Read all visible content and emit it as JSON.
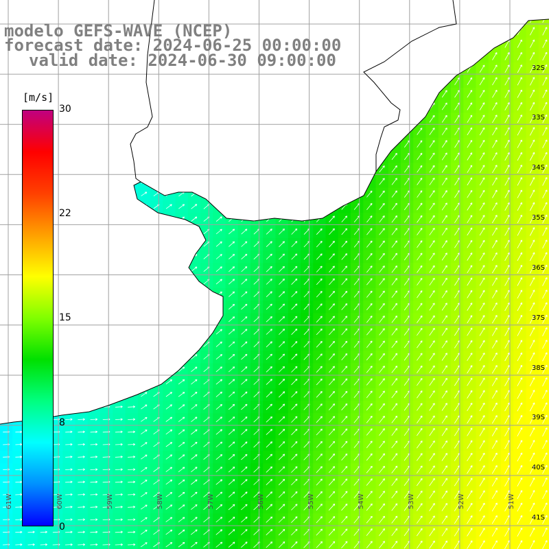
{
  "title": {
    "model": "modelo GEFS-WAVE (NCEP)",
    "forecast": "forecast date: 2024-06-25 00:00:00",
    "valid": "valid date: 2024-06-30 09:00:00"
  },
  "colorbar": {
    "unit": "[m/s]",
    "ticks": [
      "30",
      "22",
      "15",
      "8",
      "0"
    ],
    "tick_values": [
      30,
      22,
      15,
      8,
      0
    ],
    "colors": [
      "#0000ff",
      "#0090ff",
      "#00ffff",
      "#00ff80",
      "#00e000",
      "#80ff00",
      "#ffff00",
      "#ffa000",
      "#ff4000",
      "#ff0000",
      "#c00080"
    ]
  },
  "lat_labels": [
    "32S",
    "33S",
    "34S",
    "35S",
    "36S",
    "37S",
    "38S",
    "39S",
    "40S",
    "41S"
  ],
  "lon_labels": [
    "61W",
    "60W",
    "59W",
    "58W",
    "57W",
    "56W",
    "55W",
    "54W",
    "53W",
    "52W",
    "51W"
  ],
  "map": {
    "land_color": "#ffffff",
    "grid_color": "#a0a0a0",
    "arrow_color": "#ffffff",
    "coast_color": "#000000"
  }
}
